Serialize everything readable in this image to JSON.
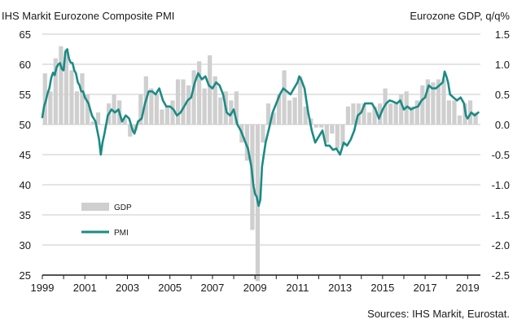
{
  "chart_data": {
    "type": "bar+line",
    "title_left": "IHS Markit Eurozone Composite PMI",
    "title_right": "Eurozone GDP, q/q%",
    "source": "Sources: IHS Markit, Eurostat.",
    "x_ticks": [
      "1999",
      "2001",
      "2003",
      "2005",
      "2007",
      "2009",
      "2011",
      "2013",
      "2015",
      "2017",
      "2019"
    ],
    "y_left": {
      "range": [
        25,
        65
      ],
      "ticks": [
        "65",
        "60",
        "55",
        "50",
        "45",
        "40",
        "35",
        "30",
        "25"
      ]
    },
    "y_right": {
      "range": [
        -2.5,
        1.5
      ],
      "ticks": [
        "1.5",
        "1.0",
        "0.5",
        "0.0",
        "-0.5",
        "-1.0",
        "-1.5",
        "-2.0",
        "-2.5"
      ]
    },
    "grid": "horizontal",
    "legend": {
      "position": "bottom-left",
      "items": [
        {
          "label": "GDP",
          "kind": "bar"
        },
        {
          "label": "PMI",
          "kind": "line"
        }
      ]
    },
    "colors": {
      "gdp": "#cfcfcf",
      "pmi": "#1b8b84",
      "grid": "#c9c9c9",
      "axis": "#1a1a1a"
    },
    "gdp_series": {
      "name": "GDP",
      "quarters": [
        "1999Q1",
        "1999Q2",
        "1999Q3",
        "1999Q4",
        "2000Q1",
        "2000Q2",
        "2000Q3",
        "2000Q4",
        "2001Q1",
        "2001Q2",
        "2001Q3",
        "2001Q4",
        "2002Q1",
        "2002Q2",
        "2002Q3",
        "2002Q4",
        "2003Q1",
        "2003Q2",
        "2003Q3",
        "2003Q4",
        "2004Q1",
        "2004Q2",
        "2004Q3",
        "2004Q4",
        "2005Q1",
        "2005Q2",
        "2005Q3",
        "2005Q4",
        "2006Q1",
        "2006Q2",
        "2006Q3",
        "2006Q4",
        "2007Q1",
        "2007Q2",
        "2007Q3",
        "2007Q4",
        "2008Q1",
        "2008Q2",
        "2008Q3",
        "2008Q4",
        "2009Q1",
        "2009Q2",
        "2009Q3",
        "2009Q4",
        "2010Q1",
        "2010Q2",
        "2010Q3",
        "2010Q4",
        "2011Q1",
        "2011Q2",
        "2011Q3",
        "2011Q4",
        "2012Q1",
        "2012Q2",
        "2012Q3",
        "2012Q4",
        "2013Q1",
        "2013Q2",
        "2013Q3",
        "2013Q4",
        "2014Q1",
        "2014Q2",
        "2014Q3",
        "2014Q4",
        "2015Q1",
        "2015Q2",
        "2015Q3",
        "2015Q4",
        "2016Q1",
        "2016Q2",
        "2016Q3",
        "2016Q4",
        "2017Q1",
        "2017Q2",
        "2017Q3",
        "2017Q4",
        "2018Q1",
        "2018Q2",
        "2018Q3",
        "2018Q4",
        "2019Q1",
        "2019Q2"
      ],
      "values": [
        0.85,
        0.55,
        1.1,
        1.3,
        1.25,
        0.9,
        0.55,
        0.85,
        0.5,
        0.05,
        0.2,
        0.0,
        0.35,
        0.5,
        0.4,
        0.1,
        -0.2,
        -0.1,
        0.5,
        0.8,
        0.6,
        0.5,
        0.25,
        0.3,
        0.4,
        0.75,
        0.75,
        0.65,
        0.9,
        1.05,
        0.6,
        1.15,
        0.8,
        0.45,
        0.55,
        0.4,
        0.55,
        -0.3,
        -0.6,
        -1.75,
        -2.6,
        -0.3,
        0.35,
        0.2,
        0.5,
        0.9,
        0.4,
        0.45,
        0.8,
        0.3,
        0.1,
        -0.05,
        -0.05,
        -0.3,
        -0.15,
        -0.4,
        -0.35,
        0.3,
        0.35,
        0.35,
        0.35,
        0.2,
        0.3,
        0.35,
        0.6,
        0.35,
        0.35,
        0.5,
        0.55,
        0.3,
        0.4,
        0.65,
        0.75,
        0.7,
        0.75,
        0.75,
        0.4,
        0.4,
        0.15,
        0.35,
        0.4,
        0.2
      ]
    },
    "pmi_series": {
      "name": "PMI",
      "x": [
        1999.0,
        1999.08,
        1999.17,
        1999.25,
        1999.33,
        1999.42,
        1999.5,
        1999.58,
        1999.67,
        1999.75,
        1999.83,
        1999.92,
        2000.0,
        2000.08,
        2000.17,
        2000.25,
        2000.33,
        2000.42,
        2000.5,
        2000.58,
        2000.67,
        2000.75,
        2000.83,
        2000.92,
        2001.0,
        2001.17,
        2001.33,
        2001.5,
        2001.67,
        2001.75,
        2001.83,
        2001.92,
        2002.08,
        2002.25,
        2002.42,
        2002.58,
        2002.75,
        2002.92,
        2003.08,
        2003.25,
        2003.33,
        2003.5,
        2003.67,
        2003.83,
        2004.0,
        2004.17,
        2004.33,
        2004.5,
        2004.67,
        2004.83,
        2005.0,
        2005.17,
        2005.33,
        2005.5,
        2005.67,
        2005.83,
        2006.0,
        2006.17,
        2006.33,
        2006.5,
        2006.67,
        2006.83,
        2007.0,
        2007.17,
        2007.33,
        2007.5,
        2007.67,
        2007.83,
        2008.0,
        2008.17,
        2008.33,
        2008.5,
        2008.67,
        2008.83,
        2008.92,
        2009.0,
        2009.08,
        2009.17,
        2009.25,
        2009.33,
        2009.5,
        2009.67,
        2009.83,
        2010.0,
        2010.17,
        2010.33,
        2010.5,
        2010.67,
        2010.83,
        2011.0,
        2011.08,
        2011.17,
        2011.33,
        2011.5,
        2011.67,
        2011.83,
        2012.0,
        2012.17,
        2012.33,
        2012.5,
        2012.67,
        2012.83,
        2013.0,
        2013.17,
        2013.33,
        2013.5,
        2013.67,
        2013.83,
        2014.0,
        2014.17,
        2014.33,
        2014.5,
        2014.67,
        2014.83,
        2015.0,
        2015.17,
        2015.33,
        2015.5,
        2015.67,
        2015.83,
        2016.0,
        2016.17,
        2016.33,
        2016.5,
        2016.67,
        2016.83,
        2017.0,
        2017.17,
        2017.33,
        2017.5,
        2017.67,
        2017.83,
        2017.92,
        2018.0,
        2018.08,
        2018.17,
        2018.33,
        2018.5,
        2018.67,
        2018.83,
        2018.92,
        2019.0,
        2019.17,
        2019.33,
        2019.5
      ],
      "values": [
        51.2,
        53.0,
        54.0,
        55.2,
        56.0,
        57.8,
        58.6,
        58.2,
        59.5,
        60.0,
        60.2,
        59.2,
        59.0,
        62.0,
        62.5,
        61.0,
        60.3,
        60.2,
        59.0,
        58.5,
        57.0,
        56.5,
        55.5,
        55.5,
        54.5,
        53.5,
        51.5,
        50.5,
        47.5,
        45.0,
        47.0,
        48.5,
        51.5,
        52.5,
        52.0,
        52.5,
        50.5,
        51.5,
        51.0,
        49.0,
        48.5,
        50.5,
        51.0,
        53.5,
        55.5,
        55.5,
        55.0,
        56.0,
        54.0,
        53.0,
        53.0,
        52.5,
        51.5,
        52.0,
        53.0,
        54.0,
        54.5,
        57.0,
        58.5,
        57.5,
        58.0,
        56.5,
        56.0,
        57.0,
        56.5,
        55.0,
        52.0,
        51.5,
        52.5,
        50.0,
        49.0,
        47.5,
        46.0,
        43.0,
        40.0,
        38.5,
        38.0,
        36.5,
        37.5,
        43.0,
        47.0,
        49.5,
        52.0,
        53.5,
        55.0,
        56.0,
        55.5,
        55.0,
        56.0,
        57.0,
        58.0,
        57.5,
        56.0,
        52.0,
        49.0,
        47.0,
        48.0,
        49.0,
        46.5,
        46.5,
        45.8,
        46.0,
        45.0,
        47.0,
        46.5,
        47.5,
        49.0,
        51.5,
        52.0,
        53.5,
        53.5,
        53.5,
        52.5,
        51.0,
        52.5,
        53.5,
        54.0,
        53.8,
        53.5,
        54.0,
        52.5,
        53.0,
        52.5,
        52.8,
        53.0,
        54.0,
        54.5,
        56.5,
        56.0,
        56.0,
        56.5,
        57.0,
        58.8,
        58.0,
        57.0,
        55.0,
        54.5,
        54.0,
        54.5,
        53.5,
        51.5,
        51.0,
        52.0,
        51.5,
        52.0
      ]
    }
  }
}
